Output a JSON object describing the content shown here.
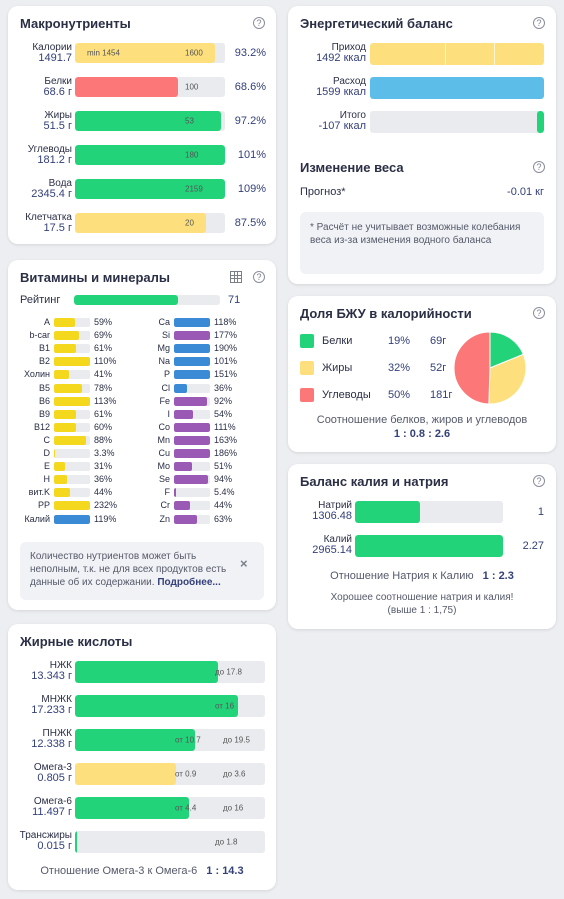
{
  "macros": {
    "title": "Макронутриенты",
    "help": "?",
    "rows": [
      {
        "name": "Калории",
        "value": "1491.7",
        "inbar_left": "min 1454",
        "inbar_right": "1600",
        "pct": "93.2%",
        "fill": 0.932,
        "color": "yellow"
      },
      {
        "name": "Белки",
        "value": "68.6 г",
        "inbar_left": "",
        "inbar_right": "100",
        "pct": "68.6%",
        "fill": 0.686,
        "color": "red"
      },
      {
        "name": "Жиры",
        "value": "51.5 г",
        "inbar_left": "",
        "inbar_right": "53",
        "pct": "97.2%",
        "fill": 0.972,
        "color": "green"
      },
      {
        "name": "Углеводы",
        "value": "181.2 г",
        "inbar_left": "",
        "inbar_right": "180",
        "pct": "101%",
        "fill": 1.0,
        "color": "green"
      },
      {
        "name": "Вода",
        "value": "2345.4 г",
        "inbar_left": "",
        "inbar_right": "2159",
        "pct": "109%",
        "fill": 1.0,
        "color": "green"
      },
      {
        "name": "Клетчатка",
        "value": "17.5 г",
        "inbar_left": "",
        "inbar_right": "20",
        "pct": "87.5%",
        "fill": 0.875,
        "color": "yellow"
      }
    ]
  },
  "energy": {
    "title": "Энергетический баланс",
    "help": "?",
    "rows": [
      {
        "name": "Приход",
        "value": "1492 ккал",
        "fill": 1.0,
        "color": "yellow"
      },
      {
        "name": "Расход",
        "value": "1599 ккал",
        "fill": 1.0,
        "color": "blue"
      },
      {
        "name": "Итого",
        "value": "-107 ккал",
        "fill": 0.04,
        "color": "green"
      }
    ]
  },
  "weight": {
    "title": "Изменение веса",
    "help": "?",
    "forecast_label": "Прогноз*",
    "forecast_value": "-0.01 кг",
    "note": "* Расчёт не учитывает возможные колебания веса из-за изменения водного баланса"
  },
  "bju": {
    "title": "Доля БЖУ в калорийности",
    "help": "?",
    "rows": [
      {
        "name": "Белки",
        "pct": "19%",
        "grams": "69г",
        "share": 0.19,
        "color": "#22d37a"
      },
      {
        "name": "Жиры",
        "pct": "32%",
        "grams": "52г",
        "share": 0.32,
        "color": "#fde07d"
      },
      {
        "name": "Углеводы",
        "pct": "50%",
        "grams": "181г",
        "share": 0.5,
        "color": "#fb7778"
      }
    ],
    "ratio_label": "Соотношение белков, жиров и углеводов",
    "ratio_value": "1 : 0.8 : 2.6"
  },
  "potassium": {
    "title": "Баланс калия и натрия",
    "help": "?",
    "rows": [
      {
        "name": "Натрий",
        "value": "1306.48",
        "ratio": "1",
        "fill": 0.44
      },
      {
        "name": "Калий",
        "value": "2965.14",
        "ratio": "2.27",
        "fill": 1.0
      }
    ],
    "ratio_label": "Отношение Натрия к Калию",
    "ratio_value": "1 : 2.3",
    "message": "Хорошее соотношение натрия и калия! (выше 1 : 1,75)"
  },
  "vitamins": {
    "title": "Витамины и минералы",
    "help": "?",
    "rating_label": "Рейтинг",
    "rating_value": "71",
    "rating_fill": 0.71,
    "left": [
      {
        "name": "A",
        "pct": "59%",
        "fill": 0.59,
        "color": "vy"
      },
      {
        "name": "b-car",
        "pct": "69%",
        "fill": 0.69,
        "color": "vy"
      },
      {
        "name": "B1",
        "pct": "61%",
        "fill": 0.61,
        "color": "vy"
      },
      {
        "name": "B2",
        "pct": "110%",
        "fill": 1.0,
        "color": "vy"
      },
      {
        "name": "Холин",
        "pct": "41%",
        "fill": 0.41,
        "color": "vy"
      },
      {
        "name": "B5",
        "pct": "78%",
        "fill": 0.78,
        "color": "vy"
      },
      {
        "name": "B6",
        "pct": "113%",
        "fill": 1.0,
        "color": "vy"
      },
      {
        "name": "B9",
        "pct": "61%",
        "fill": 0.61,
        "color": "vy"
      },
      {
        "name": "B12",
        "pct": "60%",
        "fill": 0.6,
        "color": "vy"
      },
      {
        "name": "C",
        "pct": "88%",
        "fill": 0.88,
        "color": "vy"
      },
      {
        "name": "D",
        "pct": "3.3%",
        "fill": 0.033,
        "color": "vy"
      },
      {
        "name": "E",
        "pct": "31%",
        "fill": 0.31,
        "color": "vy"
      },
      {
        "name": "H",
        "pct": "36%",
        "fill": 0.36,
        "color": "vy"
      },
      {
        "name": "вит.K",
        "pct": "44%",
        "fill": 0.44,
        "color": "vy"
      },
      {
        "name": "PP",
        "pct": "232%",
        "fill": 1.0,
        "color": "vy"
      },
      {
        "name": "Калий",
        "pct": "119%",
        "fill": 1.0,
        "color": "vb"
      }
    ],
    "right": [
      {
        "name": "Ca",
        "pct": "118%",
        "fill": 1.0,
        "color": "vb"
      },
      {
        "name": "Si",
        "pct": "177%",
        "fill": 1.0,
        "color": "purple"
      },
      {
        "name": "Mg",
        "pct": "190%",
        "fill": 1.0,
        "color": "vb"
      },
      {
        "name": "Na",
        "pct": "101%",
        "fill": 1.0,
        "color": "vb"
      },
      {
        "name": "P",
        "pct": "151%",
        "fill": 1.0,
        "color": "vb"
      },
      {
        "name": "Cl",
        "pct": "36%",
        "fill": 0.36,
        "color": "vb"
      },
      {
        "name": "Fe",
        "pct": "92%",
        "fill": 0.92,
        "color": "purple"
      },
      {
        "name": "I",
        "pct": "54%",
        "fill": 0.54,
        "color": "purple"
      },
      {
        "name": "Co",
        "pct": "111%",
        "fill": 1.0,
        "color": "purple"
      },
      {
        "name": "Mn",
        "pct": "163%",
        "fill": 1.0,
        "color": "purple"
      },
      {
        "name": "Cu",
        "pct": "186%",
        "fill": 1.0,
        "color": "purple"
      },
      {
        "name": "Mo",
        "pct": "51%",
        "fill": 0.51,
        "color": "purple"
      },
      {
        "name": "Se",
        "pct": "94%",
        "fill": 0.94,
        "color": "purple"
      },
      {
        "name": "F",
        "pct": "5.4%",
        "fill": 0.054,
        "color": "purple"
      },
      {
        "name": "Cr",
        "pct": "44%",
        "fill": 0.44,
        "color": "purple"
      },
      {
        "name": "Zn",
        "pct": "63%",
        "fill": 0.63,
        "color": "purple"
      }
    ],
    "note_text": "Количество нутриентов может быть неполным, т.к. не для всех продуктов есть данные об их содержании.",
    "note_link": "Подробнее...",
    "close": "×"
  },
  "fatty": {
    "title": "Жирные кислоты",
    "rows": [
      {
        "name": "НЖК",
        "value": "13.343 г",
        "fill": 0.75,
        "color": "green",
        "lo": "",
        "hi": "до 17.8"
      },
      {
        "name": "МНЖК",
        "value": "17.233 г",
        "fill": 0.86,
        "color": "green",
        "lo": "",
        "hi": "от 16"
      },
      {
        "name": "ПНЖК",
        "value": "12.338 г",
        "fill": 0.63,
        "color": "green",
        "lo": "от 10.7",
        "hi": "до 19.5"
      },
      {
        "name": "Омега-3",
        "value": "0.805 г",
        "fill": 0.53,
        "color": "yellow",
        "lo": "от 0.9",
        "hi": "до 3.6"
      },
      {
        "name": "Омега-6",
        "value": "11.497 г",
        "fill": 0.6,
        "color": "green",
        "lo": "от 4.4",
        "hi": "до 16"
      },
      {
        "name": "Трансжиры",
        "value": "0.015 г",
        "fill": 0.01,
        "color": "green",
        "lo": "",
        "hi": "до 1.8"
      }
    ],
    "ratio_label": "Отношение Омега-3 к Омега-6",
    "ratio_value": "1 : 14.3"
  }
}
